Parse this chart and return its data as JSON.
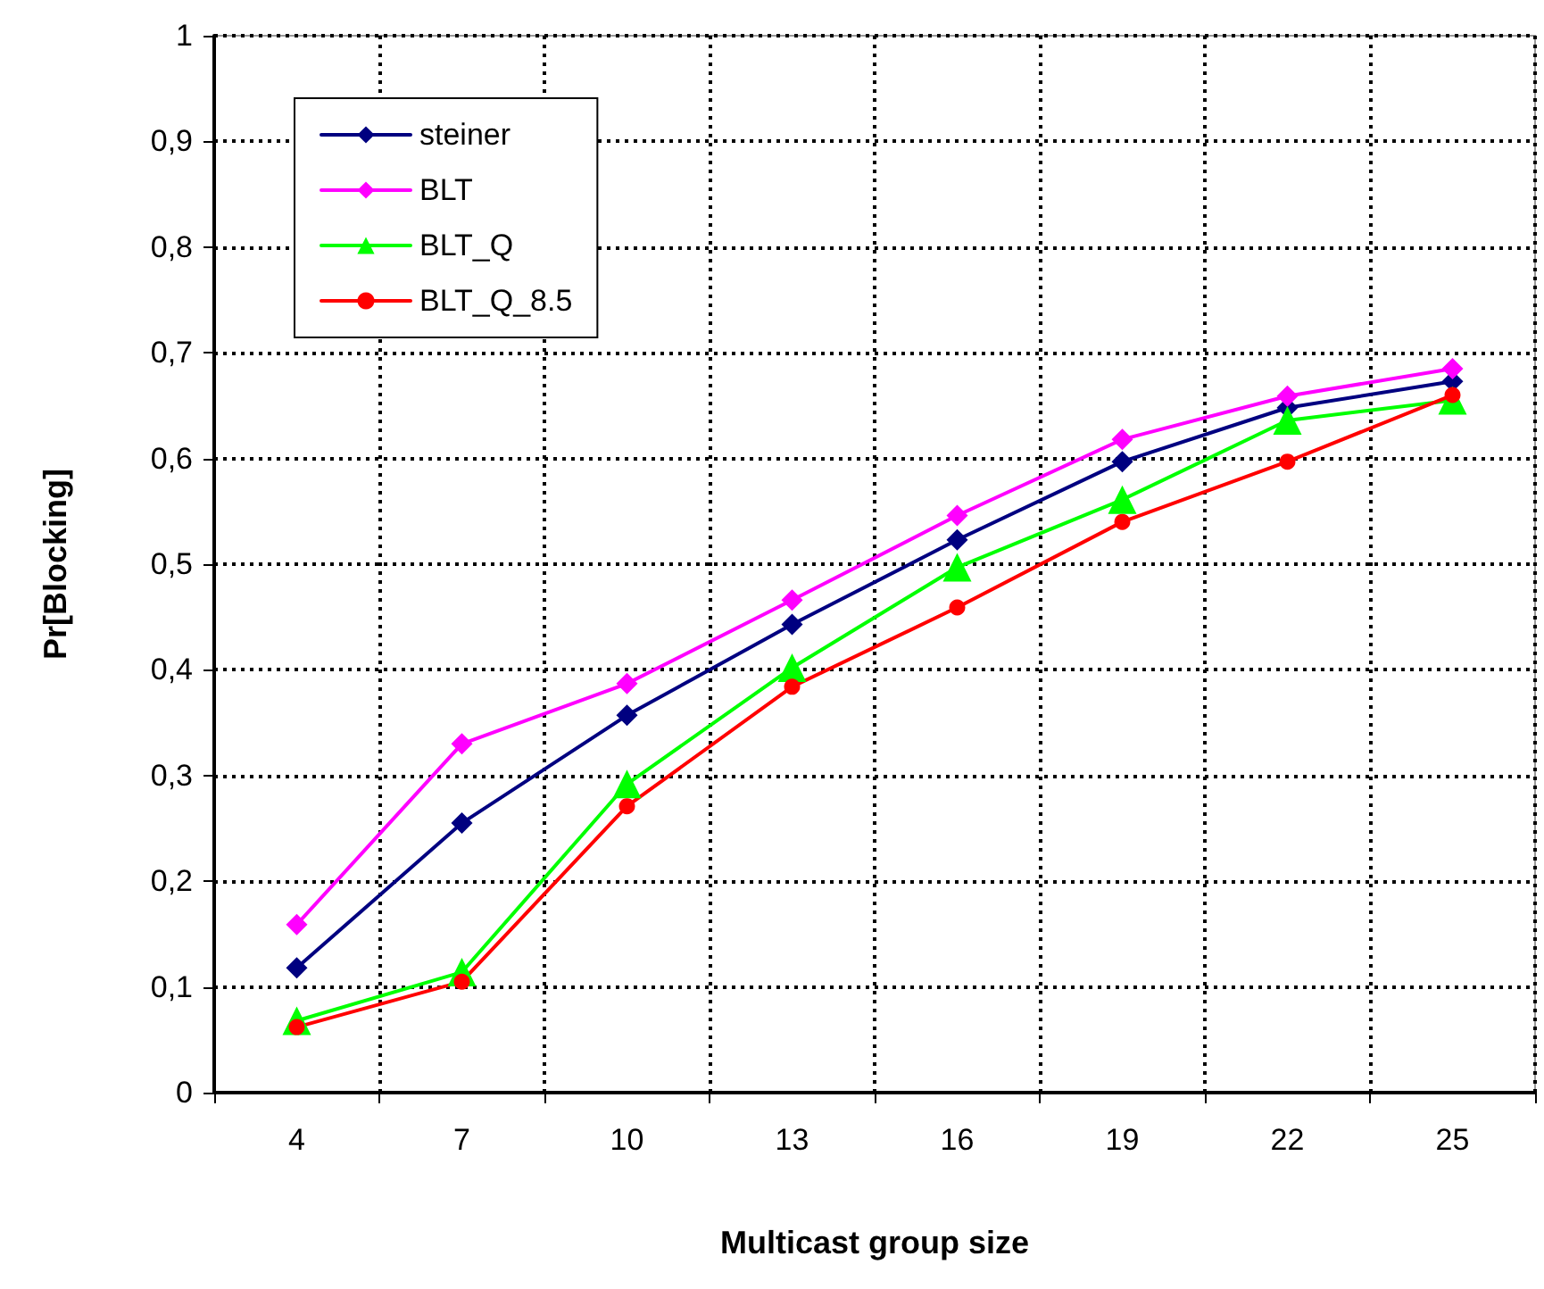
{
  "chart_data": {
    "type": "line",
    "xlabel": "Multicast group size",
    "ylabel": "Pr[Blocking]",
    "categories": [
      "4",
      "7",
      "10",
      "13",
      "16",
      "19",
      "22",
      "25"
    ],
    "series": [
      {
        "name": "steiner",
        "color": "#000080",
        "marker": "diamond",
        "values": [
          0.118,
          0.255,
          0.357,
          0.443,
          0.523,
          0.597,
          0.648,
          0.673
        ]
      },
      {
        "name": "BLT",
        "color": "#ff00ff",
        "marker": "diamond",
        "values": [
          0.159,
          0.33,
          0.387,
          0.466,
          0.546,
          0.618,
          0.659,
          0.685
        ]
      },
      {
        "name": "BLT_Q",
        "color": "#00ff00",
        "marker": "triangle",
        "values": [
          0.068,
          0.114,
          0.292,
          0.402,
          0.497,
          0.561,
          0.636,
          0.655
        ]
      },
      {
        "name": "BLT_Q_8.5",
        "color": "#ff0000",
        "marker": "circle",
        "values": [
          0.062,
          0.105,
          0.271,
          0.384,
          0.459,
          0.54,
          0.597,
          0.66
        ]
      }
    ],
    "ylim": [
      0,
      1
    ],
    "yticks": [
      0,
      {
        "value": 0.1,
        "label": "0,1"
      },
      {
        "value": 0.2,
        "label": "0,2"
      },
      {
        "value": 0.3,
        "label": "0,3"
      },
      {
        "value": 0.4,
        "label": "0,4"
      },
      {
        "value": 0.5,
        "label": "0,5"
      },
      {
        "value": 0.6,
        "label": "0,6"
      },
      {
        "value": 0.7,
        "label": "0,7"
      },
      {
        "value": 0.8,
        "label": "0,8"
      },
      {
        "value": 0.9,
        "label": "0,9"
      },
      1
    ],
    "grid": true,
    "legend": "top left",
    "line_style": "solid"
  }
}
